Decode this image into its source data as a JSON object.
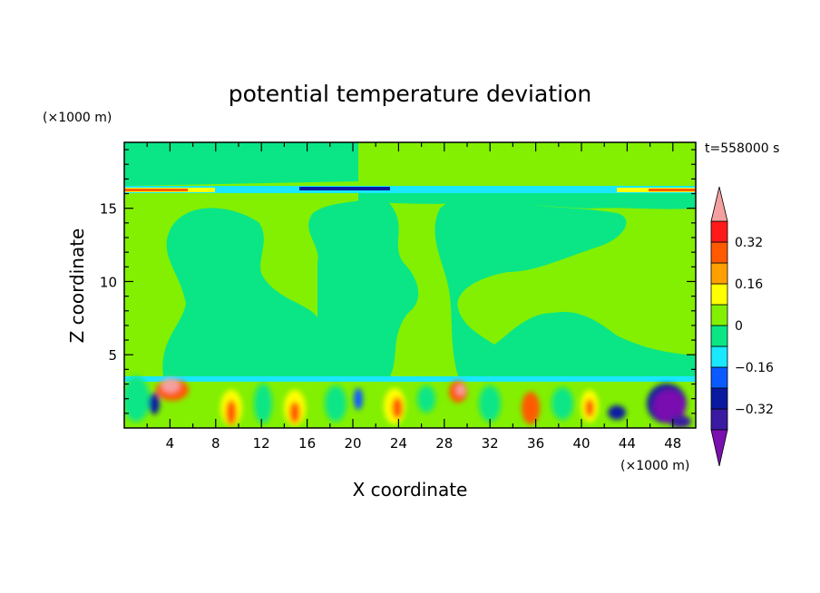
{
  "chart_data": {
    "type": "heatmap",
    "title": "potential temperature deviation",
    "xlabel": "X coordinate",
    "ylabel": "Z coordinate",
    "x_unit": "(×1000 m)",
    "z_unit": "(×1000 m)",
    "time_label": "t=558000 s",
    "xlim": [
      0,
      50
    ],
    "zlim": [
      0,
      19.5
    ],
    "x_ticks": [
      4,
      8,
      12,
      16,
      20,
      24,
      28,
      32,
      36,
      40,
      44,
      48
    ],
    "z_ticks": [
      5,
      10,
      15
    ],
    "colorbar": {
      "levels": [
        -0.4,
        -0.32,
        -0.24,
        -0.16,
        -0.08,
        0,
        0.08,
        0.16,
        0.24,
        0.32,
        0.4
      ],
      "labels": [
        {
          "value": 0.32,
          "text": "0.32"
        },
        {
          "value": 0.16,
          "text": "0.16"
        },
        {
          "value": 0,
          "text": "0"
        },
        {
          "value": -0.16,
          "text": "−0.16"
        },
        {
          "value": -0.32,
          "text": "−0.32"
        }
      ],
      "colors": [
        "#7a10b0",
        "#3a1aa0",
        "#0a1aa0",
        "#0a5aff",
        "#19e8ff",
        "#0ae686",
        "#82f000",
        "#ffff00",
        "#ffa000",
        "#ff5a00",
        "#ff1a1a",
        "#f5a0a0"
      ]
    }
  }
}
